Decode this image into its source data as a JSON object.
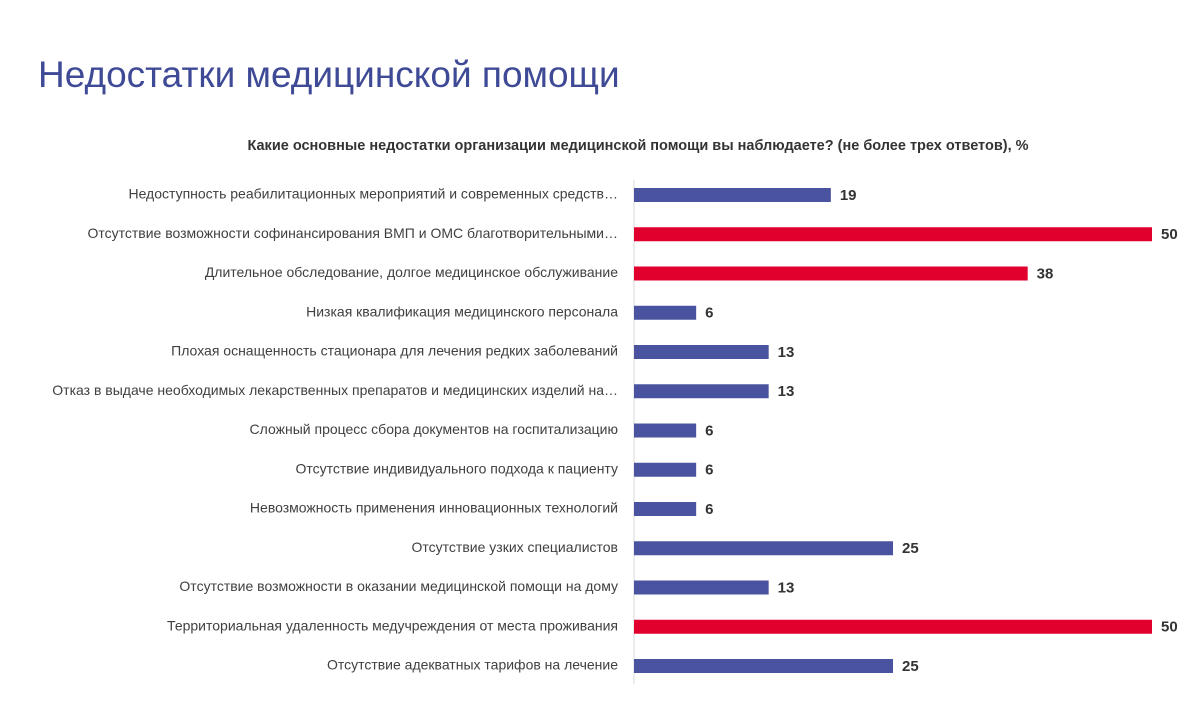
{
  "header": {
    "title": "Недостатки медицинской помощи"
  },
  "chart_data": {
    "type": "bar",
    "orientation": "horizontal",
    "title": "Какие основные недостатки организации медицинской помощи вы наблюдаете? (не более трех ответов), %",
    "categories": [
      "Недоступность реабилитационных мероприятий и современных средств…",
      "Отсутствие возможности софинансирования ВМП и ОМС благотворительными…",
      "Длительное обследование, долгое медицинское обслуживание",
      "Низкая квалификация медицинского персонала",
      "Плохая оснащенность стационара для лечения редких заболеваний",
      "Отказ в выдаче необходимых лекарственных препаратов и медицинских изделий на…",
      "Сложный процесс сбора документов на госпитализацию",
      "Отсутствие индивидуального подхода к пациенту",
      "Невозможность применения инновационных технологий",
      "Отсутствие узких специалистов",
      "Отсутствие возможности в оказании медицинской помощи на дому",
      "Территориальная удаленность медучреждения от места проживания",
      "Отсутствие адекватных тарифов на лечение"
    ],
    "values": [
      19,
      50,
      38,
      6,
      13,
      13,
      6,
      6,
      6,
      25,
      13,
      50,
      25
    ],
    "colors": [
      "#4a53a0",
      "#e1002d",
      "#e1002d",
      "#4a53a0",
      "#4a53a0",
      "#4a53a0",
      "#4a53a0",
      "#4a53a0",
      "#4a53a0",
      "#4a53a0",
      "#4a53a0",
      "#e1002d",
      "#4a53a0"
    ],
    "xlim": [
      0,
      50
    ]
  }
}
